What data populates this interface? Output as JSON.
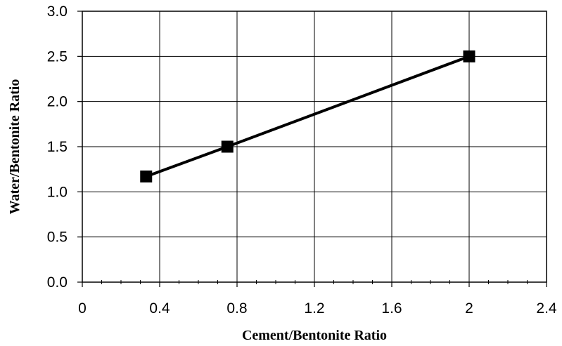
{
  "chart_data": {
    "type": "line",
    "title": "",
    "xlabel": "Cement/Bentonite Ratio",
    "ylabel": "Water/Bentonite Ratio",
    "xlim": [
      0,
      2.4
    ],
    "ylim": [
      0,
      3.0
    ],
    "x_ticks": [
      "0",
      "0.4",
      "0.8",
      "1.2",
      "1.6",
      "2",
      "2.4"
    ],
    "y_ticks": [
      "0.0",
      "0.5",
      "1.0",
      "1.5",
      "2.0",
      "2.5",
      "3.0"
    ],
    "grid": true,
    "legend": "none",
    "series": [
      {
        "marker": "square",
        "color": "#000000",
        "x": [
          0.33,
          0.75,
          2.0
        ],
        "y": [
          1.17,
          1.5,
          2.5
        ]
      }
    ]
  }
}
